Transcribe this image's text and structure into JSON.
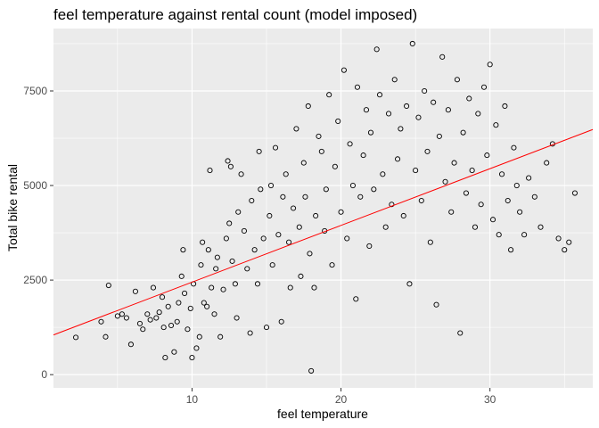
{
  "chart_data": {
    "type": "scatter",
    "title": "feel temperature against rental count (model imposed)",
    "xlabel": "feel temperature",
    "ylabel": "Total bike rental",
    "xlim": [
      0.7,
      36.9
    ],
    "ylim": [
      -350,
      9150
    ],
    "x_ticks": [
      10,
      20,
      30
    ],
    "y_ticks": [
      0,
      2500,
      5000,
      7500
    ],
    "y_tick_labels": [
      "0",
      "2500",
      "5000",
      "7500"
    ],
    "x_tick_labels": [
      "10",
      "20",
      "30"
    ],
    "grid": true,
    "background": "#ebebeb",
    "grid_color": "#ffffff",
    "point_style": "hollow-circle",
    "point_color": "#000000",
    "line_color": "#ff0000",
    "trend_line": {
      "intercept": 945,
      "slope": 150
    },
    "points": [
      [
        2.2,
        985
      ],
      [
        3.9,
        1400
      ],
      [
        4.4,
        2360
      ],
      [
        4.2,
        1000
      ],
      [
        5.0,
        1550
      ],
      [
        5.3,
        1600
      ],
      [
        5.6,
        1500
      ],
      [
        5.9,
        800
      ],
      [
        6.2,
        2200
      ],
      [
        6.5,
        1350
      ],
      [
        6.7,
        1200
      ],
      [
        7.0,
        1600
      ],
      [
        7.2,
        1450
      ],
      [
        7.4,
        2300
      ],
      [
        7.6,
        1500
      ],
      [
        7.8,
        1650
      ],
      [
        8.0,
        2050
      ],
      [
        8.1,
        1250
      ],
      [
        8.2,
        450
      ],
      [
        8.4,
        1800
      ],
      [
        8.6,
        1300
      ],
      [
        8.8,
        600
      ],
      [
        9.0,
        1400
      ],
      [
        9.1,
        1900
      ],
      [
        9.3,
        2600
      ],
      [
        9.4,
        3300
      ],
      [
        9.5,
        2150
      ],
      [
        9.7,
        1200
      ],
      [
        9.9,
        1750
      ],
      [
        10.0,
        450
      ],
      [
        10.1,
        2400
      ],
      [
        10.3,
        700
      ],
      [
        10.5,
        1000
      ],
      [
        10.6,
        2900
      ],
      [
        10.7,
        3500
      ],
      [
        10.8,
        1900
      ],
      [
        11.0,
        1800
      ],
      [
        11.1,
        3300
      ],
      [
        11.2,
        5400
      ],
      [
        11.3,
        2300
      ],
      [
        11.5,
        1600
      ],
      [
        11.6,
        2800
      ],
      [
        11.7,
        3100
      ],
      [
        11.9,
        1000
      ],
      [
        12.1,
        2250
      ],
      [
        12.3,
        3600
      ],
      [
        12.4,
        5650
      ],
      [
        12.5,
        4000
      ],
      [
        12.6,
        5500
      ],
      [
        12.7,
        3000
      ],
      [
        12.9,
        2400
      ],
      [
        13.0,
        1500
      ],
      [
        13.1,
        4300
      ],
      [
        13.3,
        5300
      ],
      [
        13.5,
        3800
      ],
      [
        13.7,
        2800
      ],
      [
        13.9,
        1100
      ],
      [
        14.0,
        4600
      ],
      [
        14.2,
        3300
      ],
      [
        14.4,
        2400
      ],
      [
        14.5,
        5900
      ],
      [
        14.6,
        4900
      ],
      [
        14.8,
        3600
      ],
      [
        15.0,
        1250
      ],
      [
        15.2,
        4200
      ],
      [
        15.3,
        5000
      ],
      [
        15.4,
        2900
      ],
      [
        15.6,
        6000
      ],
      [
        15.8,
        3700
      ],
      [
        16.0,
        1400
      ],
      [
        16.1,
        4700
      ],
      [
        16.3,
        5300
      ],
      [
        16.5,
        3500
      ],
      [
        16.6,
        2300
      ],
      [
        16.8,
        4400
      ],
      [
        17.0,
        6500
      ],
      [
        17.2,
        3900
      ],
      [
        17.3,
        2600
      ],
      [
        17.5,
        5600
      ],
      [
        17.6,
        4700
      ],
      [
        17.8,
        7100
      ],
      [
        17.9,
        3200
      ],
      [
        18.0,
        100
      ],
      [
        18.2,
        2300
      ],
      [
        18.3,
        4200
      ],
      [
        18.5,
        6300
      ],
      [
        18.7,
        5900
      ],
      [
        18.9,
        3800
      ],
      [
        19.0,
        4900
      ],
      [
        19.2,
        7400
      ],
      [
        19.4,
        2900
      ],
      [
        19.6,
        5500
      ],
      [
        19.8,
        6700
      ],
      [
        20.0,
        4300
      ],
      [
        20.2,
        8050
      ],
      [
        20.4,
        3600
      ],
      [
        20.6,
        6100
      ],
      [
        20.8,
        5000
      ],
      [
        21.0,
        2000
      ],
      [
        21.1,
        7600
      ],
      [
        21.3,
        4700
      ],
      [
        21.5,
        5800
      ],
      [
        21.7,
        7000
      ],
      [
        21.9,
        3400
      ],
      [
        22.0,
        6400
      ],
      [
        22.2,
        4900
      ],
      [
        22.4,
        8600
      ],
      [
        22.6,
        7400
      ],
      [
        22.8,
        5300
      ],
      [
        23.0,
        3900
      ],
      [
        23.2,
        6900
      ],
      [
        23.4,
        4500
      ],
      [
        23.6,
        7800
      ],
      [
        23.8,
        5700
      ],
      [
        24.0,
        6500
      ],
      [
        24.2,
        4200
      ],
      [
        24.4,
        7100
      ],
      [
        24.6,
        2400
      ],
      [
        24.8,
        8750
      ],
      [
        25.0,
        5400
      ],
      [
        25.2,
        6800
      ],
      [
        25.4,
        4600
      ],
      [
        25.6,
        7500
      ],
      [
        25.8,
        5900
      ],
      [
        26.0,
        3500
      ],
      [
        26.2,
        7200
      ],
      [
        26.4,
        1850
      ],
      [
        26.6,
        6300
      ],
      [
        26.8,
        8400
      ],
      [
        27.0,
        5100
      ],
      [
        27.2,
        7000
      ],
      [
        27.4,
        4300
      ],
      [
        27.6,
        5600
      ],
      [
        27.8,
        7800
      ],
      [
        28.0,
        1100
      ],
      [
        28.2,
        6400
      ],
      [
        28.4,
        4800
      ],
      [
        28.6,
        7300
      ],
      [
        28.8,
        5400
      ],
      [
        29.0,
        3900
      ],
      [
        29.2,
        6900
      ],
      [
        29.4,
        4500
      ],
      [
        29.6,
        7600
      ],
      [
        29.8,
        5800
      ],
      [
        30.0,
        8200
      ],
      [
        30.2,
        4100
      ],
      [
        30.4,
        6600
      ],
      [
        30.6,
        3700
      ],
      [
        30.8,
        5300
      ],
      [
        31.0,
        7100
      ],
      [
        31.2,
        4600
      ],
      [
        31.4,
        3300
      ],
      [
        31.6,
        6000
      ],
      [
        31.8,
        5000
      ],
      [
        32.0,
        4300
      ],
      [
        32.3,
        3700
      ],
      [
        32.6,
        5200
      ],
      [
        33.0,
        4700
      ],
      [
        33.4,
        3900
      ],
      [
        33.8,
        5600
      ],
      [
        34.2,
        6100
      ],
      [
        34.6,
        3600
      ],
      [
        35.0,
        3300
      ],
      [
        35.3,
        3500
      ],
      [
        35.7,
        4800
      ]
    ]
  }
}
